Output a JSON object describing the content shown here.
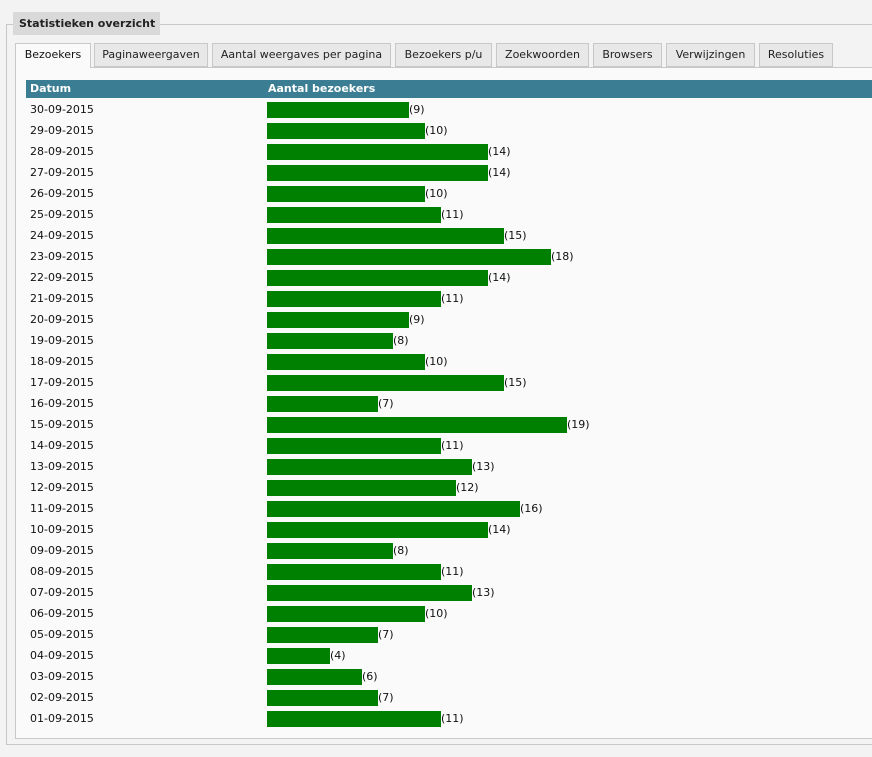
{
  "panel": {
    "legend": "Statistieken overzicht"
  },
  "tabs": [
    {
      "label": "Bezoekers",
      "active": true
    },
    {
      "label": "Paginaweergaven",
      "active": false
    },
    {
      "label": "Aantal weergaves per pagina",
      "active": false
    },
    {
      "label": "Bezoekers p/u",
      "active": false
    },
    {
      "label": "Zoekwoorden",
      "active": false
    },
    {
      "label": "Browsers",
      "active": false
    },
    {
      "label": "Verwijzingen",
      "active": false
    },
    {
      "label": "Resoluties",
      "active": false
    }
  ],
  "chart_data": {
    "type": "bar",
    "columns": [
      "Datum",
      "Aantal bezoekers"
    ],
    "categories": [
      "30-09-2015",
      "29-09-2015",
      "28-09-2015",
      "27-09-2015",
      "26-09-2015",
      "25-09-2015",
      "24-09-2015",
      "23-09-2015",
      "22-09-2015",
      "21-09-2015",
      "20-09-2015",
      "19-09-2015",
      "18-09-2015",
      "17-09-2015",
      "16-09-2015",
      "15-09-2015",
      "14-09-2015",
      "13-09-2015",
      "12-09-2015",
      "11-09-2015",
      "10-09-2015",
      "09-09-2015",
      "08-09-2015",
      "07-09-2015",
      "06-09-2015",
      "05-09-2015",
      "04-09-2015",
      "03-09-2015",
      "02-09-2015",
      "01-09-2015"
    ],
    "values": [
      9,
      10,
      14,
      14,
      10,
      11,
      15,
      18,
      14,
      11,
      9,
      8,
      10,
      15,
      7,
      19,
      11,
      13,
      12,
      16,
      14,
      8,
      11,
      13,
      10,
      7,
      4,
      6,
      7,
      11
    ],
    "grid": false
  },
  "colors": {
    "header": "#3b7d92",
    "header_text": "#ffffff",
    "bar": "#008000"
  }
}
